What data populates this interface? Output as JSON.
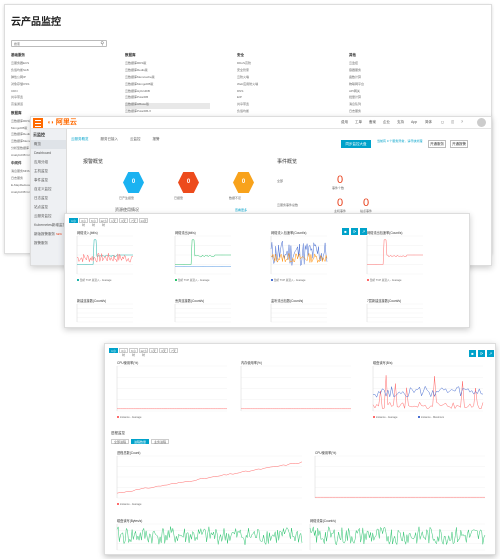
{
  "p1": {
    "title": "云产品监控",
    "search_placeholder": "搜索",
    "col1_head": "基础服务",
    "col1": [
      "云服务器ECS",
      "负载均衡SLB",
      "弹性公网IP",
      "对象存储OSS",
      "CDN",
      "共享带宽",
      "高速通道"
    ],
    "col1_head2": "数据库",
    "col1b": [
      "云数据库RDS版",
      "MongoDB版",
      "云数据库Redis版",
      "云数据库Memcache版",
      "分析型数据库",
      "AnalyticDB for PostgreSQL"
    ],
    "col1_head3": "中间件",
    "col1c": [
      "消息服务MNS",
      "日志服务",
      "E-MapReduce",
      "AnalyticDB for PostgreSQL"
    ],
    "col2_head": "数据库",
    "col2": [
      "云数据库RDS版",
      "云数据库Redis版",
      "云数据库Memcache版",
      "云数据库MongoDB版",
      "云数据库HybridDB",
      "云数据库PolarDB",
      "云数据库HBase版",
      "云数据库PolarDB-X",
      "云数据库POLARDB-MySQL",
      "云数据库PolarDB-Oracle",
      "云数据库 PostgreSQL"
    ],
    "col3_head": "安全",
    "col3": [
      "DDoS高防",
      "安全管家",
      "云防火墙",
      "Web应用防火墙",
      "DNS",
      "EIP",
      "共享带宽",
      "负载均衡",
      "NAT网关",
      "VPN网关",
      "数据传输"
    ],
    "col4_head": "其他",
    "col4": [
      "云监控",
      "容器服务",
      "函数计算",
      "物联网平台",
      "API网关",
      "批量计算",
      "消息队列",
      "日志服务",
      "E-MapReduce",
      "专有网络",
      "高速通道"
    ]
  },
  "p2": {
    "logo": "阿里云",
    "top_items": [
      "费用",
      "工单",
      "备案",
      "企业",
      "支持",
      "App",
      "简体"
    ],
    "side_head": "云监控",
    "side_items": [
      "概览",
      "Dashboard",
      "应用分组",
      "主机监控",
      "事件监控",
      "自定义监控",
      "日志监控",
      "站点监控",
      "云服务监控",
      "Kubernetes新增监控",
      "新版报警服务",
      "报警服务"
    ],
    "side_badge": "NEW",
    "tabs": [
      "云服务概览",
      "服务已接入",
      "云监控",
      "报警"
    ],
    "alarm_title": "报警概览",
    "hex_values": [
      "0",
      "0",
      "0"
    ],
    "hex_labels": [
      "已产生报警",
      "已报警",
      "数据不足"
    ],
    "hex_colors": [
      "#1ab2f1",
      "#ed4b1c",
      "#f8a21b"
    ],
    "usage_title": "资源使用情况",
    "usage_link": "查看更多",
    "event_title": "事件概览",
    "event_label": "全部",
    "event_value": "0",
    "event_sub": "事件个数",
    "event_row": "云服务事件总数",
    "event_v2": "0",
    "event_v3": "0",
    "event_sub2": "主机事件",
    "event_sub3": "站点事件",
    "btn_primary": "同步监控大盘",
    "btn_a": "开通服务",
    "btn_b": "开通报警",
    "notice": "当前有 0 个服务异常，请尽快处理"
  },
  "p3": {
    "tabs": [
      "1小时",
      "3小时",
      "6小时",
      "12小时",
      "1天",
      "3天",
      "7天",
      "14天"
    ],
    "titles": [
      "网络流入(bit/s)",
      "网络流出(bit/s)",
      "网络流入包速率(Count/s)",
      "网络流出包速率(Count/s)",
      "新建连接数(Count/s)",
      "丢弃连接数(Count/s)",
      "监听流出包数(Count/s)",
      "7层新建连接数(Count/s)"
    ],
    "y1": [
      "400.00",
      "200.00",
      "0.00"
    ],
    "legend": [
      "监听 TCP 总流入 - Average",
      "后端服务器 - Average"
    ],
    "btns": [
      "■",
      "⟳",
      "↗"
    ]
  },
  "p4": {
    "tabs": [
      "1小时",
      "3小时",
      "6小时",
      "12小时",
      "1天",
      "3天",
      "7天"
    ],
    "titles": [
      "CPU使用率(%)",
      "内存使用率(%)",
      "磁盘读写(B/s)",
      "网络流入流出(bit/s)"
    ],
    "btns": [
      "■",
      "⟳",
      "↗"
    ],
    "section": "进程监控",
    "section_tabs": [
      "全部进程",
      "进程数量",
      "业务进程"
    ],
    "chart2_title": "进程总数(Count)",
    "chart2b_title": "CPU使用率(%)",
    "bottom_titles": [
      "磁盘读写(Bytes/s)",
      "网络流量(Count/s)"
    ],
    "y_ticks": [
      "400.00",
      "300.00",
      "200.00",
      "100.00",
      "0"
    ],
    "x_ticks": [
      "17:30:00",
      "17:40:00",
      "17:50:00",
      "18:00:00",
      "18:10:00"
    ],
    "legend_a": "instance - Average",
    "legend_b": "instance - Maximum"
  }
}
